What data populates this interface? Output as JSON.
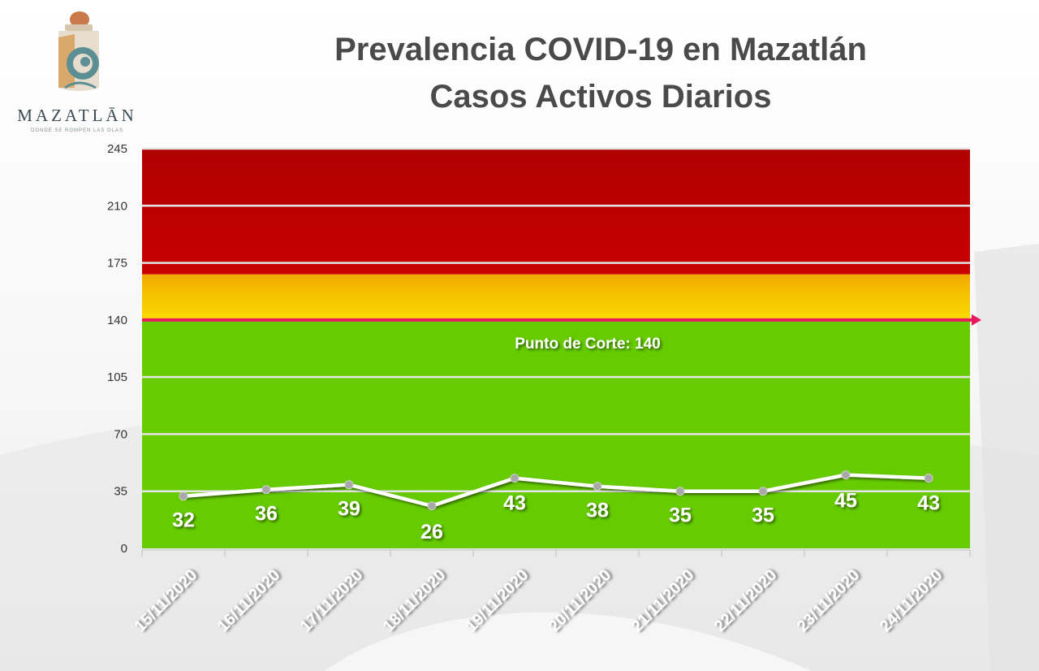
{
  "header": {
    "title_line1": "Prevalencia COVID-19 en Mazatlán",
    "title_line2": "Casos Activos Diarios"
  },
  "logo": {
    "wordmark": "MAZATLĀN",
    "tagline": "DONDE SE ROMPEN LAS OLAS"
  },
  "chart_data": {
    "type": "line",
    "title": "Prevalencia COVID-19 en Mazatlán Casos Activos Diarios",
    "categories": [
      "15/11/2020",
      "16/11/2020",
      "17/11/2020",
      "18/11/2020",
      "19/11/2020",
      "20/11/2020",
      "21/11/2020",
      "22/11/2020",
      "23/11/2020",
      "24/11/2020"
    ],
    "series": [
      {
        "values": [
          32,
          36,
          39,
          26,
          43,
          38,
          35,
          35,
          45,
          43
        ],
        "color": "#ffffff"
      }
    ],
    "data_labels": [
      "32",
      "36",
      "39",
      "26",
      "43",
      "38",
      "35",
      "35",
      "45",
      "43"
    ],
    "ylim": [
      0,
      245
    ],
    "yticks": [
      0,
      35,
      70,
      105,
      140,
      175,
      210,
      245
    ],
    "ytick_labels": [
      "0",
      "35",
      "70",
      "105",
      "140",
      "175",
      "210",
      "245"
    ],
    "grid": true,
    "bands": [
      {
        "from": 0,
        "to": 140,
        "color": "#66cc00"
      },
      {
        "from": 140,
        "to": 168,
        "color": "#f5c400"
      },
      {
        "from": 168,
        "to": 245,
        "color": "#c00000"
      }
    ],
    "threshold": {
      "value": 140,
      "color": "#e8185c",
      "label": "Punto de Corte: 140"
    }
  }
}
